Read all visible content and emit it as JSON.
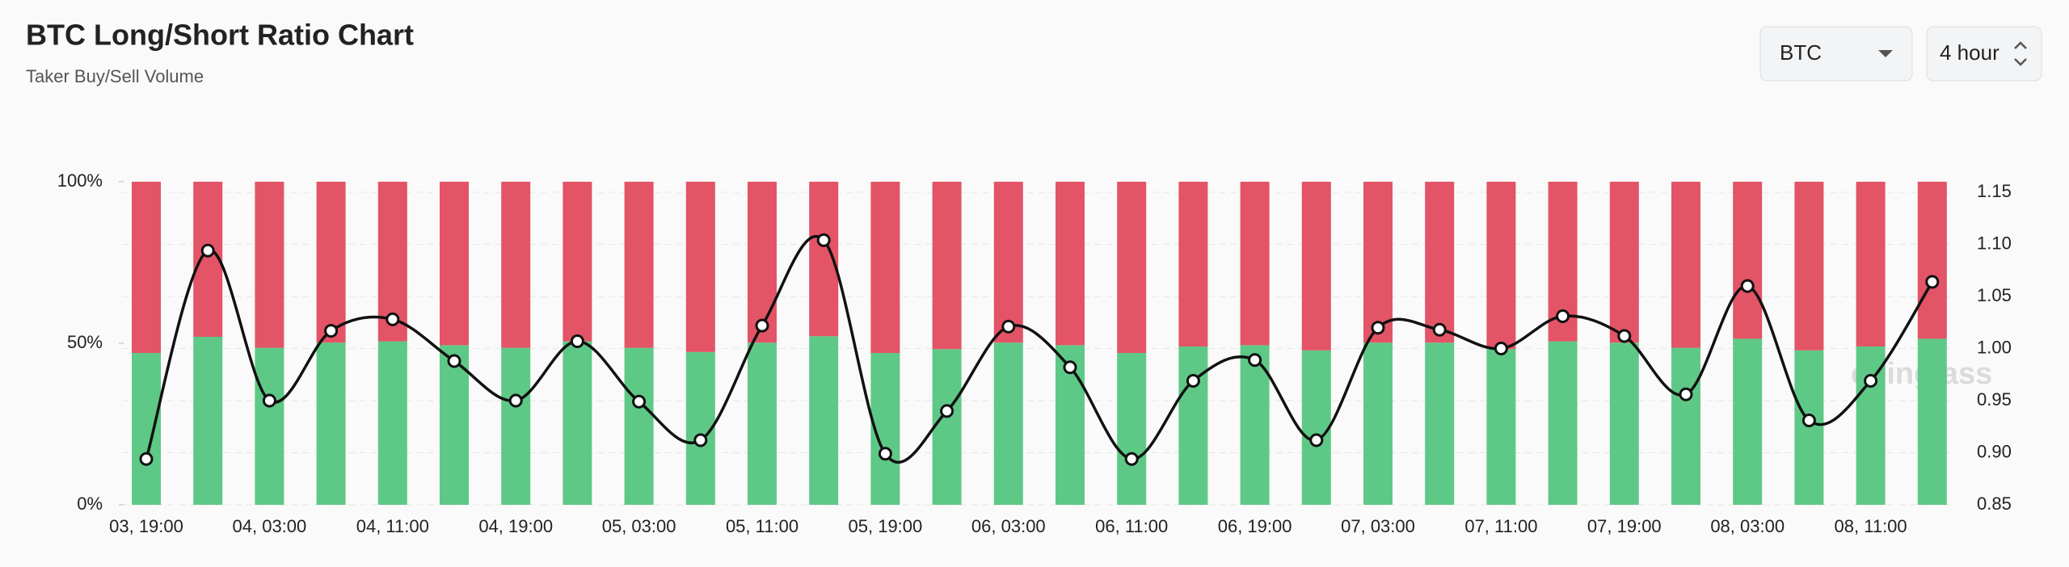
{
  "chart_data": {
    "type": "stacked-bar-line",
    "title": "BTC Long/Short Ratio Chart",
    "subtitle": "Taker Buy/Sell Volume",
    "controls": {
      "symbol": "BTC",
      "interval": "4 hour"
    },
    "watermark": "coinglass",
    "categories": [
      "03, 19:00",
      null,
      "04, 03:00",
      null,
      "04, 11:00",
      null,
      "04, 19:00",
      null,
      "05, 03:00",
      null,
      "05, 11:00",
      null,
      "05, 19:00",
      null,
      "06, 03:00",
      null,
      "06, 11:00",
      null,
      "06, 19:00",
      null,
      "07, 03:00",
      null,
      "07, 11:00",
      null,
      "07, 19:00",
      null,
      "08, 03:00",
      null,
      "08, 11:00",
      null
    ],
    "series": [
      {
        "color": "#5ec986",
        "values": [
          47,
          52,
          48.6,
          50.2,
          50.6,
          49.4,
          48.6,
          50.6,
          48.6,
          47.3,
          50.2,
          52.2,
          47,
          48.2,
          50.2,
          49.4,
          47,
          49,
          49.4,
          47.8,
          50.2,
          50.2,
          48.2,
          50.6,
          50.2,
          48.6,
          51.4,
          47.8,
          49,
          51.4
        ]
      },
      {
        "color": "#e35466",
        "values": [
          53,
          48,
          51.4,
          49.8,
          49.4,
          50.6,
          51.4,
          49.4,
          51.4,
          52.7,
          49.8,
          47.8,
          53,
          51.8,
          49.8,
          50.6,
          53,
          51,
          50.6,
          52.2,
          49.8,
          49.8,
          51.8,
          49.4,
          49.8,
          51.4,
          48.6,
          52.2,
          51,
          48.6
        ]
      },
      {
        "color": "#111111",
        "axis": "y2",
        "values": [
          0.894,
          1.094,
          0.95,
          1.017,
          1.028,
          0.988,
          0.95,
          1.007,
          0.949,
          0.912,
          1.022,
          1.104,
          0.899,
          0.94,
          1.021,
          0.982,
          0.894,
          0.969,
          0.989,
          0.912,
          1.02,
          1.018,
          1.0,
          1.031,
          1.012,
          0.956,
          1.06,
          0.931,
          0.969,
          1.064
        ]
      }
    ],
    "ylim": [
      0,
      100
    ],
    "yticks": [
      {
        "value": 0,
        "label": "0%"
      },
      {
        "value": 50,
        "label": "50%"
      },
      {
        "value": 100,
        "label": "100%"
      }
    ],
    "y2lim": [
      0.85,
      1.15
    ],
    "y2ticks": [
      0.85,
      {
        "value": 0.9,
        "label": "0.90"
      },
      0.95,
      {
        "value": 1,
        "label": "1.00"
      },
      1.05,
      {
        "value": 1.1,
        "label": "1.10"
      },
      1.15
    ],
    "grid": true
  }
}
